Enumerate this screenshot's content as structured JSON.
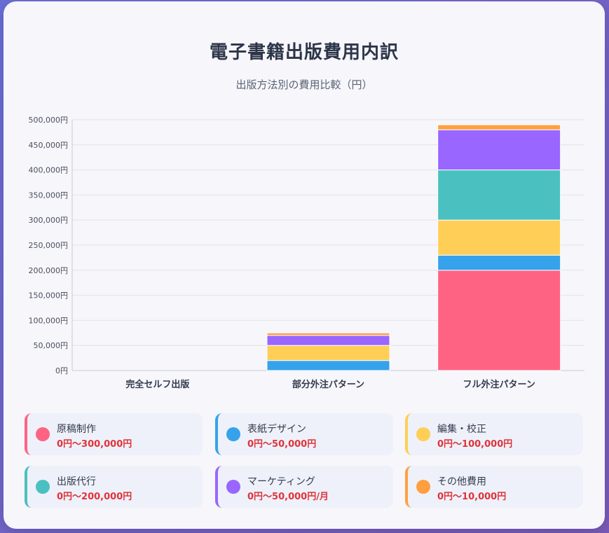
{
  "title": "電子書籍出版費用内訳",
  "subtitle": "出版方法別の費用比較（円）",
  "chart_data": {
    "type": "bar",
    "stacked": true,
    "categories": [
      "完全セルフ出版",
      "部分外注パターン",
      "フル外注パターン"
    ],
    "series": [
      {
        "name": "原稿制作",
        "color": "#ff6384",
        "values": [
          0,
          0,
          200000
        ]
      },
      {
        "name": "表紙デザイン",
        "color": "#36a2eb",
        "values": [
          0,
          20000,
          30000
        ]
      },
      {
        "name": "編集・校正",
        "color": "#ffce56",
        "values": [
          0,
          30000,
          70000
        ]
      },
      {
        "name": "出版代行",
        "color": "#4bc0c0",
        "values": [
          0,
          0,
          100000
        ]
      },
      {
        "name": "マーケティング",
        "color": "#9966ff",
        "values": [
          0,
          20000,
          80000
        ]
      },
      {
        "name": "その他費用",
        "color": "#ff9f40",
        "values": [
          0,
          5000,
          10000
        ]
      }
    ],
    "ylim": [
      0,
      500000
    ],
    "yticks": [
      "0円",
      "50,000円",
      "100,000円",
      "150,000円",
      "200,000円",
      "250,000円",
      "300,000円",
      "350,000円",
      "400,000円",
      "450,000円",
      "500,000円"
    ],
    "grid": true
  },
  "legend": [
    {
      "name": "原稿制作",
      "range": "0円〜300,000円",
      "color": "#ff6384"
    },
    {
      "name": "表紙デザイン",
      "range": "0円〜50,000円",
      "color": "#36a2eb"
    },
    {
      "name": "編集・校正",
      "range": "0円〜100,000円",
      "color": "#ffce56"
    },
    {
      "name": "出版代行",
      "range": "0円〜200,000円",
      "color": "#4bc0c0"
    },
    {
      "name": "マーケティング",
      "range": "0円〜50,000円/月",
      "color": "#9966ff"
    },
    {
      "name": "その他費用",
      "range": "0円〜10,000円",
      "color": "#ff9f40"
    }
  ]
}
